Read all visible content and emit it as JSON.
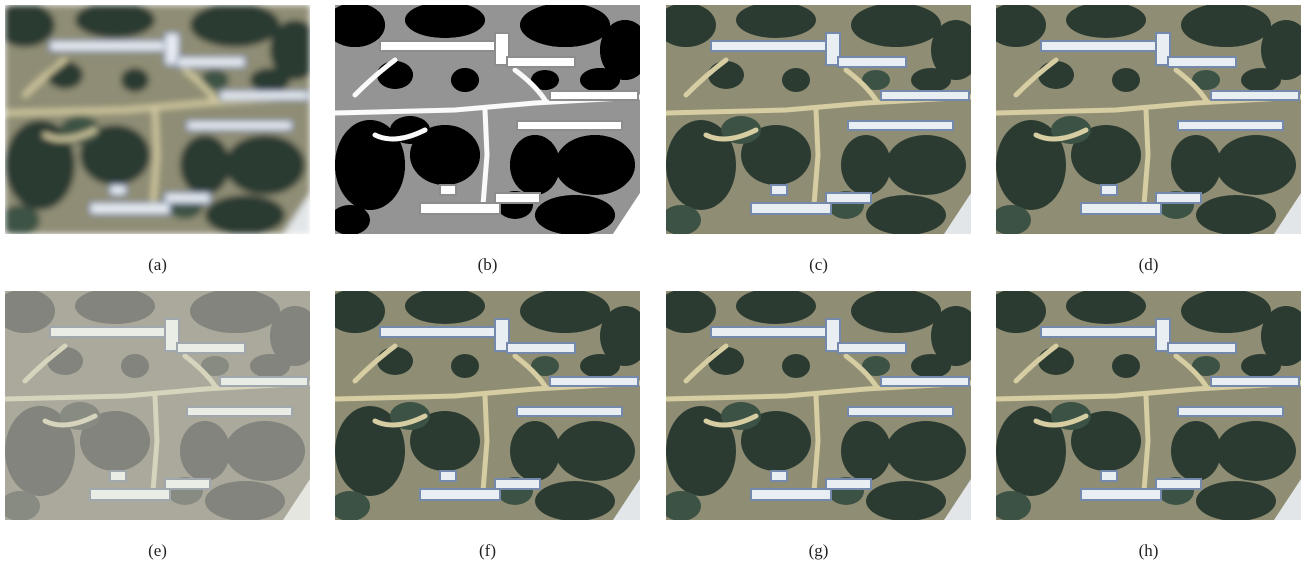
{
  "figure": {
    "panels": [
      {
        "caption": "(a)"
      },
      {
        "caption": "(b)"
      },
      {
        "caption": "(c)"
      },
      {
        "caption": "(d)"
      },
      {
        "caption": "(e)"
      },
      {
        "caption": "(f)"
      },
      {
        "caption": "(g)"
      },
      {
        "caption": "(h)"
      }
    ]
  }
}
